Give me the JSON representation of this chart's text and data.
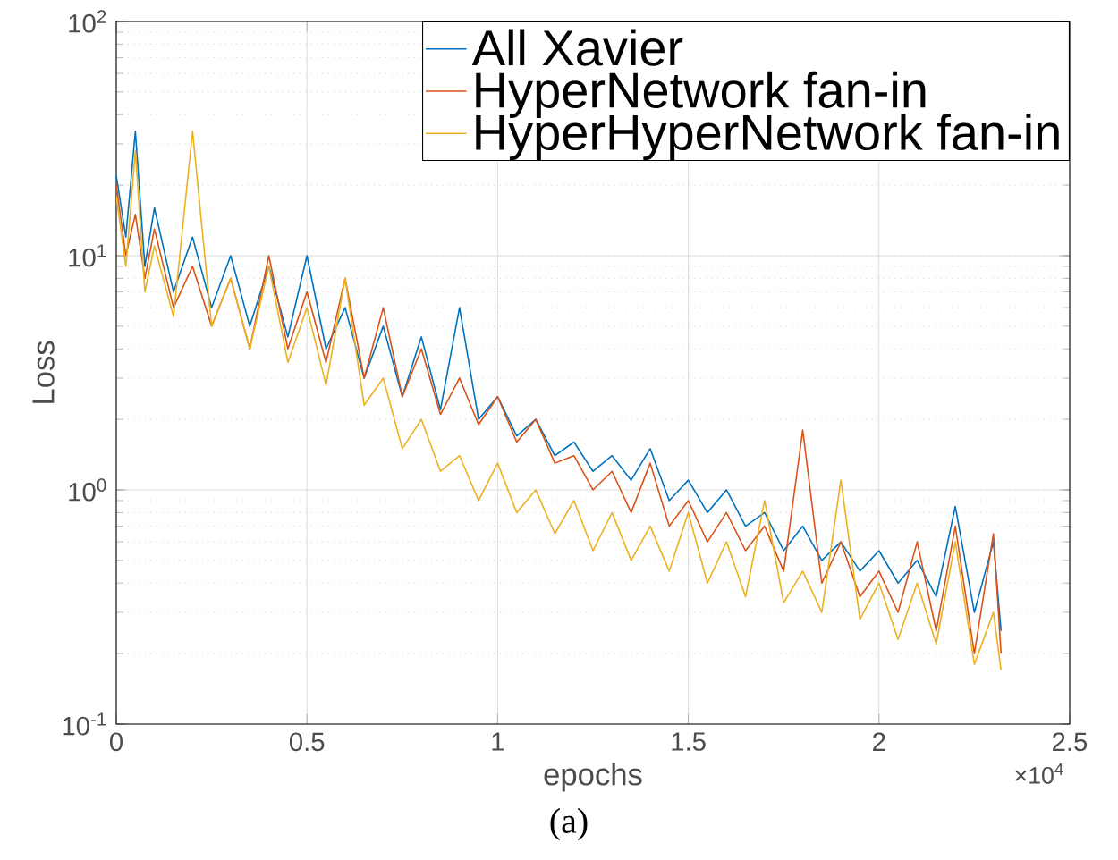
{
  "chart_data": {
    "type": "line",
    "xlabel": "epochs",
    "ylabel": "Loss",
    "log": "y",
    "grid": true,
    "legend": "top right",
    "line_style": "solid",
    "marker": "none",
    "xlim": [
      0,
      2.5
    ],
    "ylim": [
      0.1,
      100
    ],
    "xticks": [
      0,
      0.5,
      1,
      1.5,
      2,
      2.5
    ],
    "yticks": [
      {
        "value": 0.1,
        "label": "10$^{-1}$"
      },
      {
        "value": 1,
        "label": "10$^{0}$"
      },
      {
        "value": 10,
        "label": "10$^{1}$"
      },
      {
        "value": 100,
        "label": "10$^{2}$"
      }
    ],
    "x": [
      0,
      0.025,
      0.05,
      0.075,
      0.1,
      0.15,
      0.2,
      0.25,
      0.3,
      0.35,
      0.4,
      0.45,
      0.5,
      0.55,
      0.6,
      0.65,
      0.7,
      0.75,
      0.8,
      0.85,
      0.9,
      0.95,
      1.0,
      1.05,
      1.1,
      1.15,
      1.2,
      1.25,
      1.3,
      1.35,
      1.4,
      1.45,
      1.5,
      1.55,
      1.6,
      1.65,
      1.7,
      1.75,
      1.8,
      1.85,
      1.9,
      1.95,
      2.0,
      2.05,
      2.1,
      2.15,
      2.2,
      2.25,
      2.3,
      2.32
    ],
    "series": [
      {
        "name": "All Xavier",
        "color": "#0072bd",
        "values": [
          22,
          12,
          34,
          9,
          16,
          7,
          12,
          6,
          10,
          5,
          9,
          4.5,
          10,
          4,
          6,
          3,
          5,
          2.5,
          4.5,
          2.2,
          6,
          2,
          2.5,
          1.7,
          2,
          1.4,
          1.6,
          1.2,
          1.4,
          1.1,
          1.5,
          0.9,
          1.1,
          0.8,
          1.0,
          0.7,
          0.8,
          0.55,
          0.7,
          0.5,
          0.6,
          0.45,
          0.55,
          0.4,
          0.5,
          0.35,
          0.85,
          0.3,
          0.6,
          0.25
        ]
      },
      {
        "name": "HyperNetwork fan-in",
        "color": "#d95319",
        "values": [
          20,
          10,
          15,
          8,
          13,
          6,
          9,
          5,
          8,
          4,
          10,
          4,
          7,
          3.5,
          8,
          3,
          6,
          2.5,
          4,
          2.1,
          3,
          1.9,
          2.5,
          1.6,
          2,
          1.3,
          1.4,
          1.0,
          1.2,
          0.8,
          1.3,
          0.7,
          0.9,
          0.6,
          0.8,
          0.55,
          0.7,
          0.45,
          1.8,
          0.4,
          0.6,
          0.35,
          0.45,
          0.3,
          0.6,
          0.25,
          0.7,
          0.2,
          0.65,
          0.2
        ]
      },
      {
        "name": "HyperHyperNetwork fan-in",
        "color": "#edb120",
        "values": [
          18,
          9,
          28,
          7,
          11,
          5.5,
          34,
          5,
          8,
          4,
          9,
          3.5,
          6,
          2.8,
          8,
          2.3,
          3,
          1.5,
          2,
          1.2,
          1.4,
          0.9,
          1.3,
          0.8,
          1.0,
          0.65,
          0.9,
          0.55,
          0.8,
          0.5,
          0.7,
          0.45,
          0.8,
          0.4,
          0.6,
          0.35,
          0.9,
          0.33,
          0.45,
          0.3,
          1.1,
          0.28,
          0.4,
          0.23,
          0.4,
          0.22,
          0.6,
          0.18,
          0.3,
          0.17
        ]
      }
    ],
    "annotations": [
      "×10$^{4}$",
      "(a)"
    ]
  }
}
